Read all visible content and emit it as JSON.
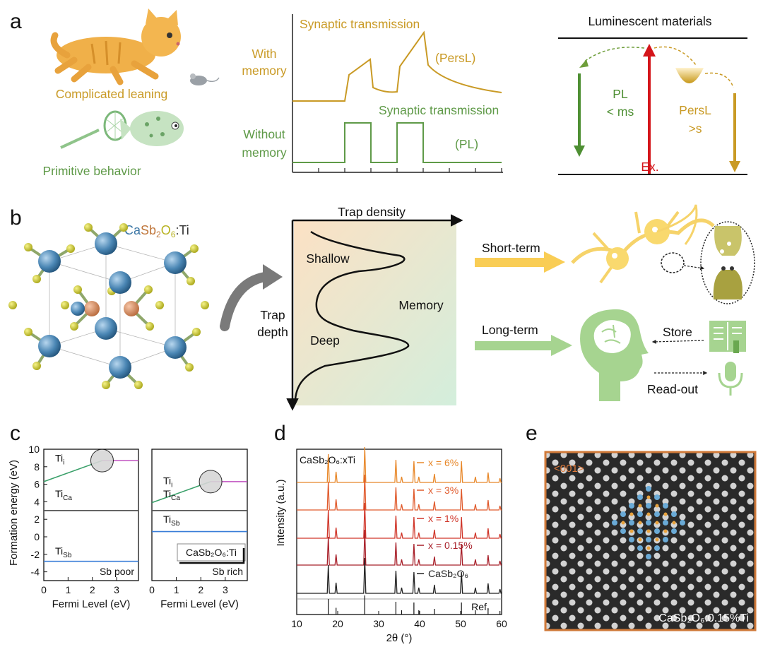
{
  "panel_a": {
    "label": "a",
    "complicated_text": "Complicated leaning",
    "primitive_text": "Primitive behavior",
    "syn_top": "Synaptic transmission",
    "with_memory_1": "With",
    "with_memory_2": "memory",
    "persl": "(PersL)",
    "syn_bottom": "Synaptic transmission",
    "without_1": "Without",
    "without_2": "memory",
    "pl": "(PL)",
    "lum_title": "Luminescent materials",
    "pl_1": "PL",
    "pl_2": "< ms",
    "persl_1": "PersL",
    "persl_2": ">s",
    "ex": "Ex."
  },
  "panel_b": {
    "label": "b",
    "formula_ca": "Ca",
    "formula_sb": "Sb",
    "formula_sub2": "2",
    "formula_o": "O",
    "formula_sub6": "6",
    "formula_ti": ":Ti",
    "trap_density": "Trap density",
    "trap_1": "Trap",
    "trap_2": "depth",
    "shallow": "Shallow",
    "deep": "Deep",
    "memory": "Memory",
    "short_term": "Short-term",
    "long_term": "Long-term",
    "store": "Store",
    "readout": "Read-out"
  },
  "panel_c": {
    "label": "c",
    "ylabel": "Formation energy (eV)",
    "xlabel": "Fermi Level (eV)",
    "yticks": [
      "10",
      "8",
      "6",
      "4",
      "2",
      "0",
      "-2",
      "-4"
    ],
    "xticks": [
      "0",
      "1",
      "2",
      "3"
    ],
    "ti": "Ti",
    "sub_i": "i",
    "sub_ca": "Ca",
    "sub_sb": "Sb",
    "left_title": "Sb poor",
    "right_title": "Sb rich",
    "legend": "CaSb₂O₆:Ti"
  },
  "panel_d": {
    "label": "d",
    "ylabel": "Intensity (a.u.)",
    "xlabel": "2θ (°)",
    "xticks": [
      "10",
      "20",
      "30",
      "40",
      "50",
      "60"
    ],
    "formula": "CaSb₂O₆:xTi",
    "ref": "Ref.",
    "colors": [
      "#e8882a",
      "#e05a2c",
      "#d0362a",
      "#a8202a",
      "#222222"
    ]
  },
  "panel_e": {
    "label": "e",
    "direction": "<001>",
    "caption": "CaSb₂O₆:0.15%Ti"
  },
  "chart_data": [
    {
      "type": "line",
      "ylabel": "Formation energy (eV)",
      "xlabel": "Fermi Level (eV)",
      "xlim": [
        0,
        3.9
      ],
      "ylim": [
        -5,
        10
      ],
      "series": [
        {
          "name": "Tii",
          "x": [
            0,
            2.4,
            3.9
          ],
          "y": [
            6.3,
            8.7,
            8.7
          ]
        },
        {
          "name": "TiCa",
          "x": [
            0,
            3.9
          ],
          "y": [
            3.0,
            3.0
          ]
        },
        {
          "name": "TiSb",
          "x": [
            0,
            3.9
          ],
          "y": [
            -2.8,
            -2.8
          ]
        }
      ]
    },
    {
      "type": "line",
      "ylabel": "Formation energy (eV)",
      "xlabel": "Fermi Level (eV)",
      "xlim": [
        0,
        3.9
      ],
      "ylim": [
        -5,
        10
      ],
      "series": [
        {
          "name": "Tii",
          "x": [
            0,
            2.4,
            3.9
          ],
          "y": [
            3.9,
            6.3,
            6.3
          ]
        },
        {
          "name": "TiCa",
          "x": [
            0,
            3.9
          ],
          "y": [
            3.0,
            3.0
          ]
        },
        {
          "name": "TiSb",
          "x": [
            0,
            3.9
          ],
          "y": [
            0.6,
            0.6
          ]
        }
      ]
    },
    {
      "type": "line",
      "ylabel": "Intensity (a.u.)",
      "xlabel": "2θ (°)",
      "xlim": [
        10,
        60
      ],
      "peaks_2theta": [
        17.7,
        19.6,
        26.6,
        34.2,
        35.6,
        38.6,
        39.8,
        43.6,
        50.2,
        53.6,
        56.7,
        59.6
      ],
      "series": [
        {
          "name": "x = 6%"
        },
        {
          "name": "x = 3%"
        },
        {
          "name": "x = 1%"
        },
        {
          "name": "x = 0.15%"
        },
        {
          "name": "CaSb₂O₆"
        }
      ]
    }
  ]
}
